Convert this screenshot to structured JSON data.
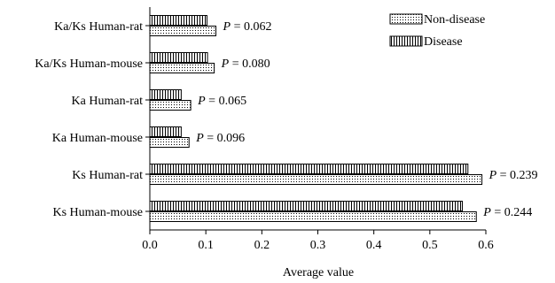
{
  "chart_data": {
    "type": "bar",
    "orientation": "horizontal",
    "categories": [
      "Ka/Ks Human-rat",
      "Ka/Ks Human-mouse",
      "Ka Human-rat",
      "Ka Human-mouse",
      "Ks Human-rat",
      "Ks Human-mouse"
    ],
    "series": [
      {
        "name": "Non-disease",
        "pattern": "dots",
        "values": [
          0.118,
          0.115,
          0.073,
          0.07,
          0.593,
          0.583
        ]
      },
      {
        "name": "Disease",
        "pattern": "vertical-lines",
        "values": [
          0.102,
          0.103,
          0.056,
          0.056,
          0.568,
          0.558
        ]
      }
    ],
    "p_values": [
      "0.062",
      "0.080",
      "0.065",
      "0.096",
      "0.239",
      "0.244"
    ],
    "p_label": "P",
    "xlabel": "Average value",
    "ylabel": "",
    "xlim": [
      0,
      0.6
    ],
    "xticks": [
      "0.0",
      "0.1",
      "0.2",
      "0.3",
      "0.4",
      "0.5",
      "0.6"
    ],
    "legend_position": "top-right",
    "grid": false,
    "colors": {
      "ink": "#000000",
      "fill": "#ffffff"
    }
  }
}
